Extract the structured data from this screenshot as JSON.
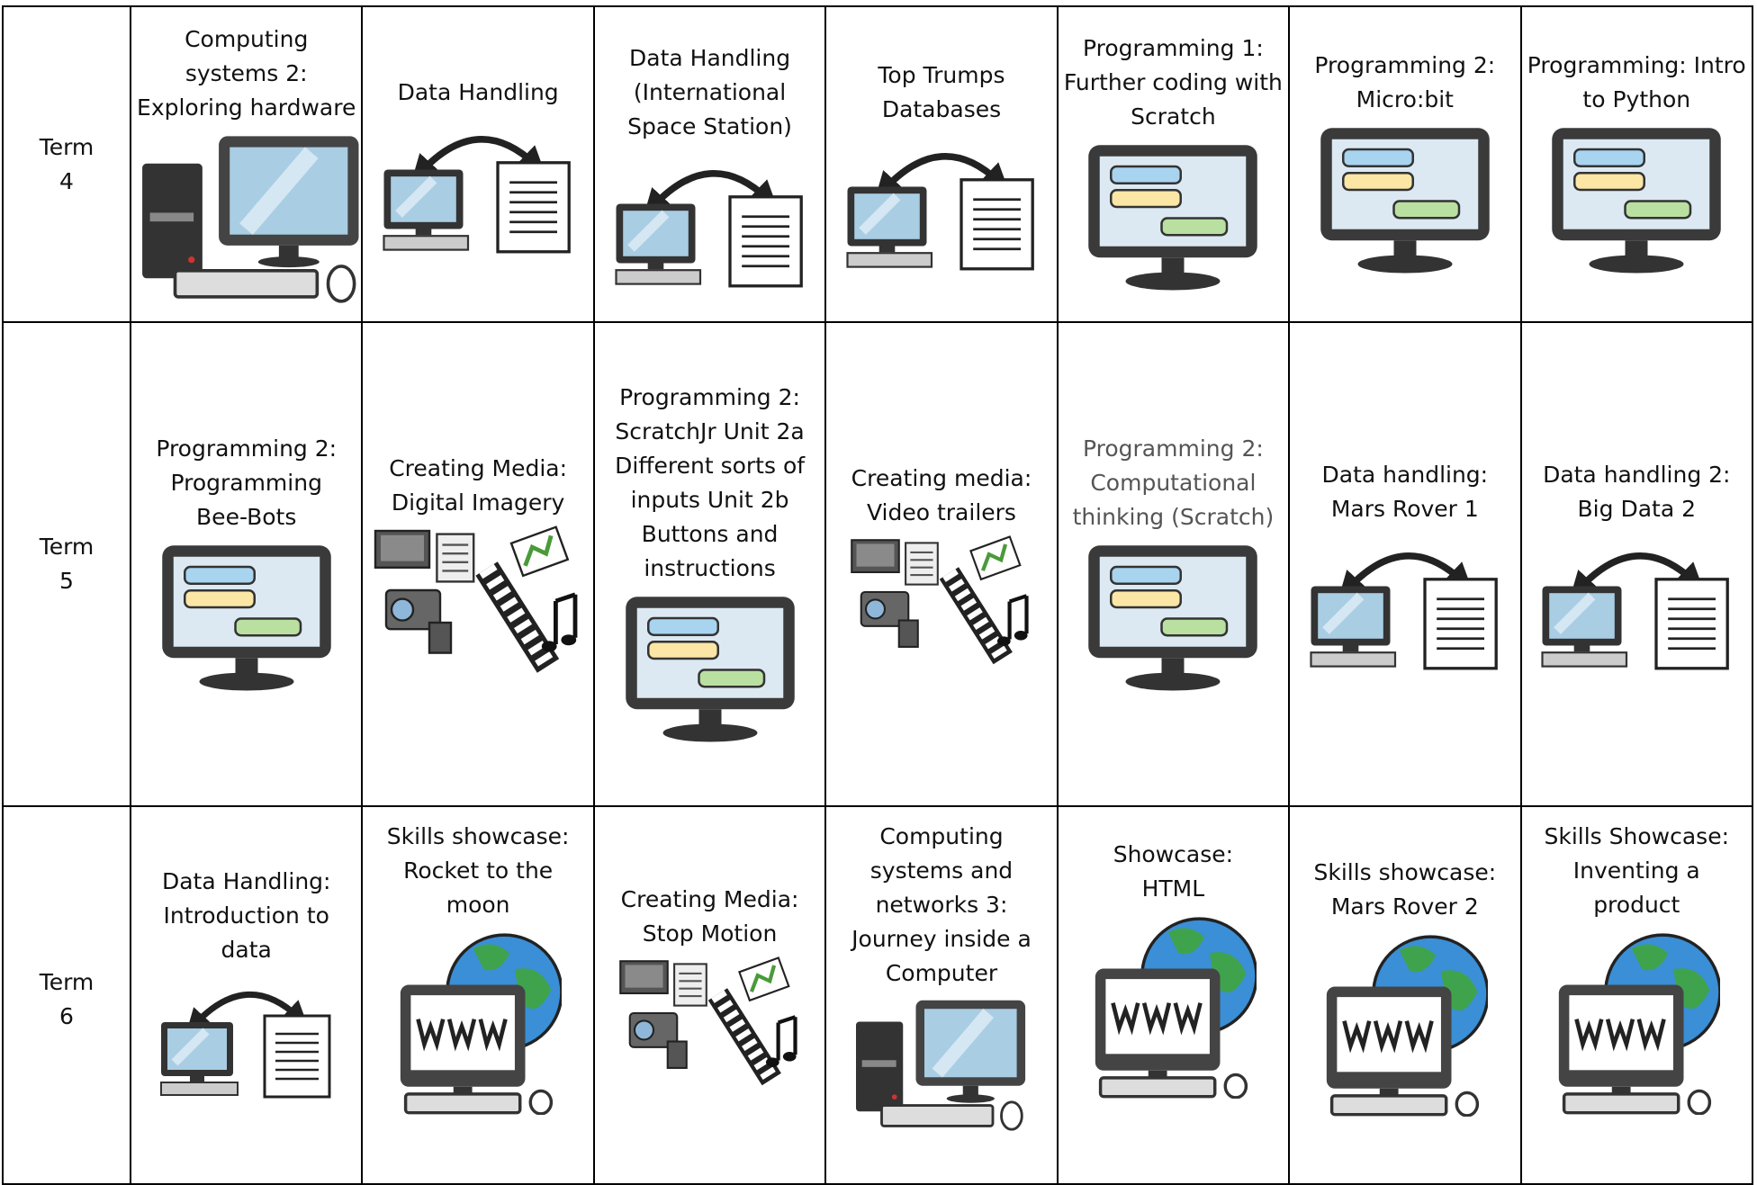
{
  "table": {
    "rows": [
      {
        "term": "Term 4",
        "cells": [
          "Computing systems 2: Exploring hardware",
          "Data Handling",
          "Data Handling (International Space Station)",
          "Top Trumps Databases",
          "Programming 1: Further coding with Scratch",
          "Programming 2: Micro:bit",
          "Programming: Intro to Python"
        ]
      },
      {
        "term": "Term 5",
        "cells": [
          "Programming 2: Programming Bee-Bots",
          "Creating Media: Digital Imagery",
          "Programming 2: ScratchJr Unit 2a Different sorts of inputs Unit 2b Buttons and instructions",
          "Creating media: Video trailers",
          "Programming 2: Computational thinking (Scratch)",
          "Data handling: Mars Rover 1",
          "Data handling 2: Big Data 2"
        ]
      },
      {
        "term": "Term 6",
        "cells": [
          "Data Handling: Introduction to data",
          "Skills showcase: Rocket to the moon",
          "Creating Media: Stop Motion",
          "Computing systems and networks 3: Journey inside a Computer",
          "Showcase: HTML",
          "Skills showcase: Mars Rover 2",
          "Skills Showcase: Inventing a product"
        ]
      }
    ]
  }
}
